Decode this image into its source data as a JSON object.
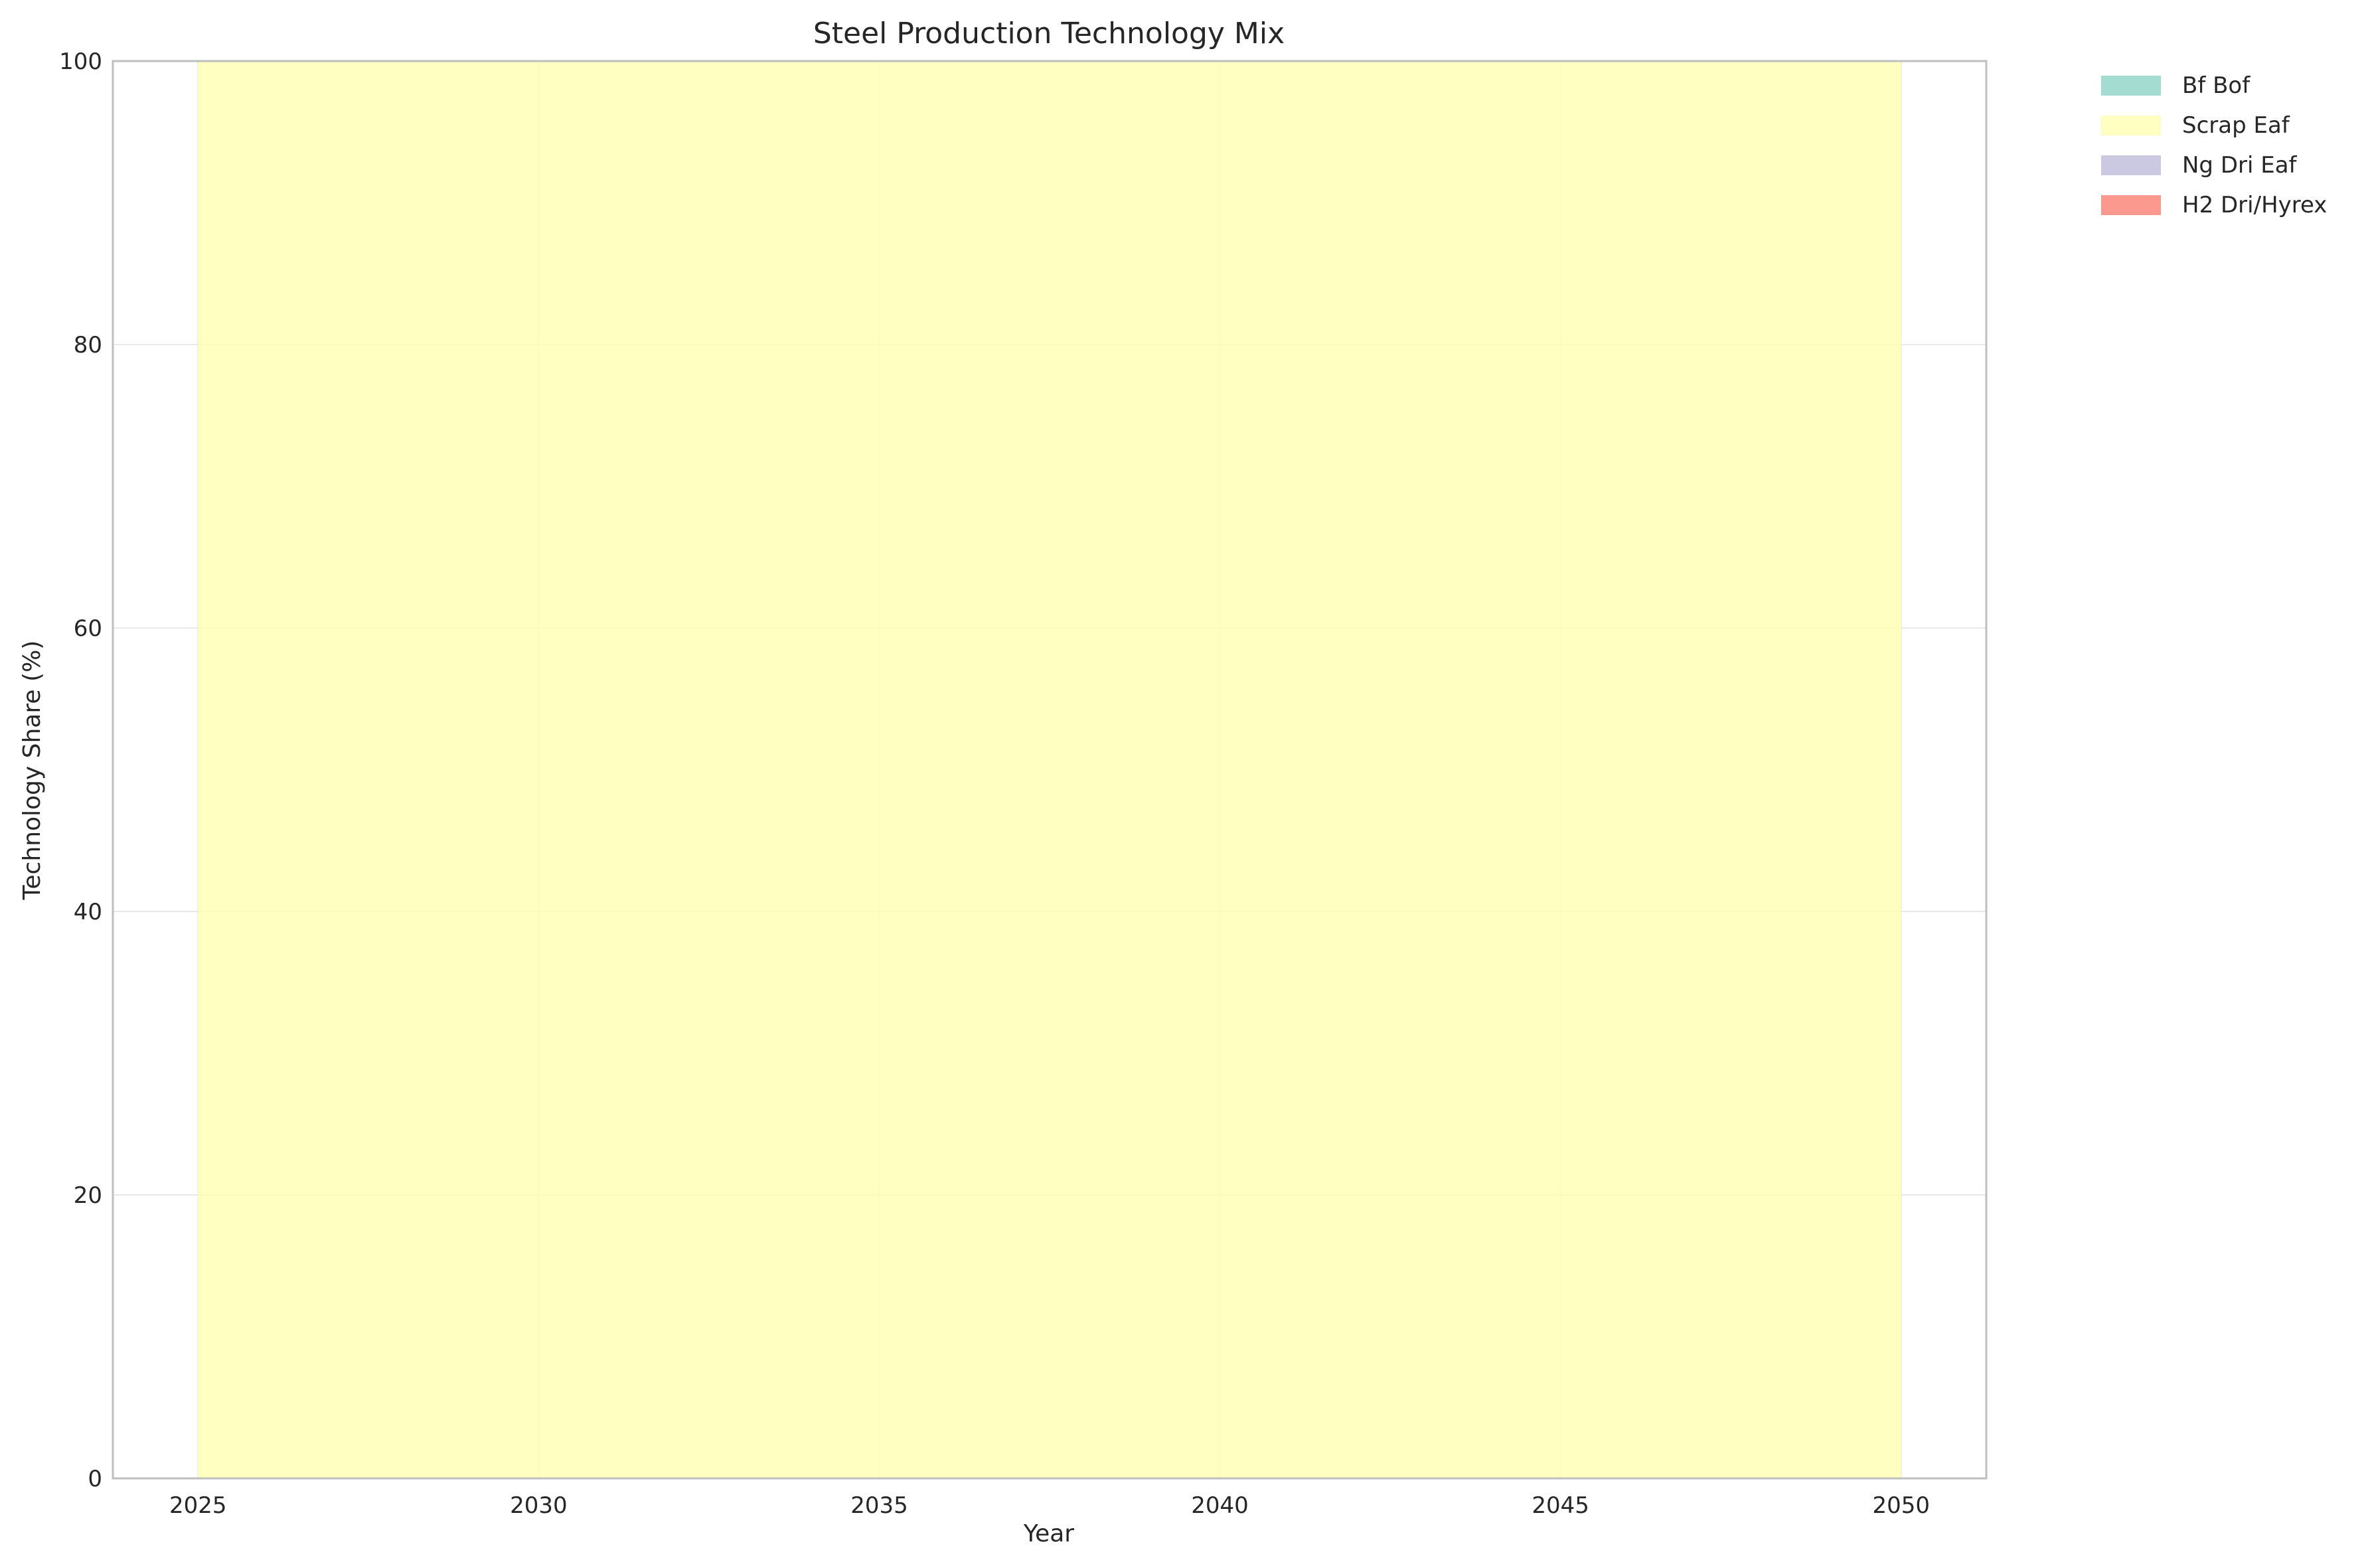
{
  "chart_data": {
    "type": "area",
    "stacked": true,
    "title": "Steel Production Technology Mix",
    "xlabel": "Year",
    "ylabel": "Technology Share (%)",
    "xlim": [
      2023.75,
      2051.25
    ],
    "ylim": [
      0,
      100
    ],
    "xticks": [
      2025,
      2030,
      2035,
      2040,
      2045,
      2050
    ],
    "yticks": [
      0,
      20,
      40,
      60,
      80,
      100
    ],
    "grid": true,
    "legend_placement": "outside-top-right",
    "x": [
      2025,
      2030,
      2035,
      2040,
      2045,
      2050
    ],
    "series": [
      {
        "name": "Bf Bof",
        "color": "#8dd3c7",
        "values": [
          0,
          0,
          0,
          0,
          0,
          0
        ]
      },
      {
        "name": "Scrap Eaf",
        "color": "#ffffb3",
        "values": [
          100,
          100,
          100,
          100,
          100,
          100
        ]
      },
      {
        "name": "Ng Dri Eaf",
        "color": "#bebada",
        "values": [
          0,
          0,
          0,
          0,
          0,
          0
        ]
      },
      {
        "name": "H2 Dri/Hyrex",
        "color": "#fb8072",
        "values": [
          0,
          0,
          0,
          0,
          0,
          0
        ]
      }
    ]
  }
}
